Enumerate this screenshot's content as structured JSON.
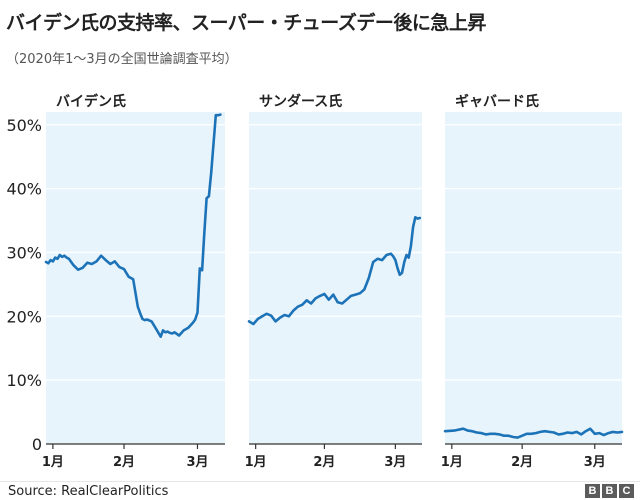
{
  "header": {
    "title": "バイデン氏の支持率、スーパー・チューズデー後に急上昇",
    "subtitle": "（2020年1～3月の全国世論調査平均）"
  },
  "footer": {
    "source": "Source: RealClearPolitics",
    "logo": [
      "B",
      "B",
      "C"
    ]
  },
  "colors": {
    "line": "#1d73b8",
    "panel": "#e8f4fc",
    "grid": "#ffffff",
    "axis": "#333333"
  },
  "chart_data": {
    "type": "line",
    "title": "バイデン氏の支持率、スーパー・チューズデー後に急上昇",
    "ylim": [
      0,
      52
    ],
    "yticks": [
      0,
      10,
      20,
      30,
      40,
      50
    ],
    "ytick_labels": [
      "0",
      "10%",
      "20%",
      "30%",
      "40%",
      "50%"
    ],
    "x_domain": [
      0,
      78
    ],
    "xticks": [
      3,
      34,
      66
    ],
    "xtick_labels": [
      "1月",
      "2月",
      "3月"
    ],
    "panels": [
      {
        "name": "バイデン氏",
        "x": [
          0,
          1,
          2,
          3,
          4,
          5,
          6,
          7,
          8,
          9,
          10,
          12,
          14,
          16,
          18,
          20,
          22,
          24,
          26,
          28,
          30,
          32,
          34,
          36,
          38,
          40,
          41,
          42,
          43,
          44,
          46,
          48,
          50,
          51,
          52,
          53,
          54,
          55,
          56,
          58,
          60,
          62,
          64,
          65,
          66,
          67,
          68,
          69,
          70,
          71,
          72,
          73,
          74,
          75,
          76
        ],
        "y": [
          28.5,
          28.3,
          28.8,
          28.6,
          29.2,
          29.0,
          29.6,
          29.3,
          29.5,
          29.2,
          29.0,
          28.0,
          27.3,
          27.6,
          28.4,
          28.2,
          28.6,
          29.5,
          28.8,
          28.2,
          28.6,
          27.7,
          27.4,
          26.2,
          25.8,
          21.5,
          20.5,
          19.6,
          19.4,
          19.5,
          19.2,
          18.0,
          16.8,
          17.8,
          17.5,
          17.6,
          17.4,
          17.3,
          17.5,
          17.0,
          17.8,
          18.2,
          19.0,
          19.5,
          20.6,
          27.5,
          27.2,
          33.0,
          38.5,
          38.8,
          42.5,
          47.0,
          51.5,
          51.5,
          51.6
        ]
      },
      {
        "name": "サンダース氏",
        "x": [
          0,
          2,
          4,
          6,
          8,
          10,
          12,
          14,
          16,
          18,
          20,
          22,
          24,
          26,
          28,
          30,
          32,
          34,
          36,
          38,
          40,
          42,
          44,
          46,
          48,
          50,
          52,
          54,
          56,
          58,
          60,
          62,
          64,
          65,
          66,
          67,
          68,
          69,
          70,
          71,
          72,
          73,
          74,
          75,
          76,
          77
        ],
        "y": [
          19.2,
          18.8,
          19.6,
          20.0,
          20.4,
          20.1,
          19.2,
          19.8,
          20.2,
          20.0,
          20.9,
          21.5,
          21.8,
          22.5,
          22.0,
          22.8,
          23.2,
          23.5,
          22.6,
          23.4,
          22.2,
          22.0,
          22.6,
          23.2,
          23.4,
          23.6,
          24.2,
          26.0,
          28.5,
          29.0,
          28.8,
          29.6,
          29.8,
          29.4,
          28.8,
          27.5,
          26.5,
          26.8,
          28.5,
          29.6,
          29.2,
          31.0,
          34.0,
          35.5,
          35.3,
          35.4
        ]
      },
      {
        "name": "ギャバード氏",
        "x": [
          0,
          4,
          8,
          10,
          12,
          14,
          16,
          18,
          20,
          22,
          24,
          26,
          28,
          30,
          32,
          34,
          36,
          38,
          40,
          42,
          44,
          46,
          48,
          50,
          52,
          54,
          56,
          58,
          60,
          62,
          64,
          66,
          68,
          70,
          72,
          74,
          76,
          78
        ],
        "y": [
          2.0,
          2.1,
          2.4,
          2.1,
          2.0,
          1.8,
          1.7,
          1.5,
          1.6,
          1.6,
          1.5,
          1.3,
          1.3,
          1.1,
          1.0,
          1.3,
          1.6,
          1.6,
          1.7,
          1.9,
          2.0,
          1.9,
          1.8,
          1.5,
          1.6,
          1.8,
          1.7,
          1.9,
          1.5,
          2.0,
          2.4,
          1.6,
          1.7,
          1.4,
          1.7,
          1.9,
          1.8,
          1.9
        ]
      }
    ]
  }
}
